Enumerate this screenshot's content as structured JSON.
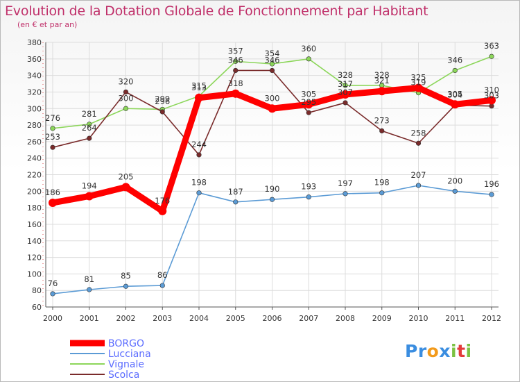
{
  "title": "Evolution de la Dotation Globale de Fonctionnement par Habitant",
  "subtitle": "(en € et par an)",
  "logo": [
    "P",
    "r",
    "o",
    "x",
    "i",
    "t",
    "i"
  ],
  "logo_colors": [
    "#3a8de0",
    "#3a8de0",
    "#f29a1b",
    "#3a8de0",
    "#7cc242",
    "#e33b3b",
    "#7cc242"
  ],
  "chart_data": {
    "type": "line",
    "title": "Evolution de la Dotation Globale de Fonctionnement par Habitant",
    "ylabel": "(en € et par an)",
    "xlabel": "",
    "x": [
      "2000",
      "2001",
      "2002",
      "2003",
      "2004",
      "2005",
      "2006",
      "2007",
      "2008",
      "2009",
      "2010",
      "2011",
      "2012"
    ],
    "ylim": [
      60,
      380
    ],
    "yticks": [
      60,
      80,
      100,
      120,
      140,
      160,
      180,
      200,
      220,
      240,
      260,
      280,
      300,
      320,
      340,
      360,
      380
    ],
    "grid": true,
    "legend": "bottom-left",
    "series": [
      {
        "name": "BORGO",
        "color": "#ff0000",
        "values": [
          186,
          194,
          205,
          176,
          313,
          318,
          300,
          305,
          317,
          321,
          325,
          305,
          310
        ]
      },
      {
        "name": "Lucciana",
        "color": "#5b9bd5",
        "values": [
          76,
          81,
          85,
          86,
          198,
          187,
          190,
          193,
          197,
          198,
          207,
          200,
          196
        ]
      },
      {
        "name": "Vignale",
        "color": "#8cd65a",
        "values": [
          276,
          281,
          300,
          299,
          315,
          357,
          354,
          360,
          328,
          328,
          319,
          346,
          363
        ]
      },
      {
        "name": "Scolca",
        "color": "#7a2b2b",
        "values": [
          253,
          264,
          320,
          296,
          244,
          346,
          346,
          295,
          307,
          273,
          258,
          304,
          303
        ]
      }
    ]
  }
}
